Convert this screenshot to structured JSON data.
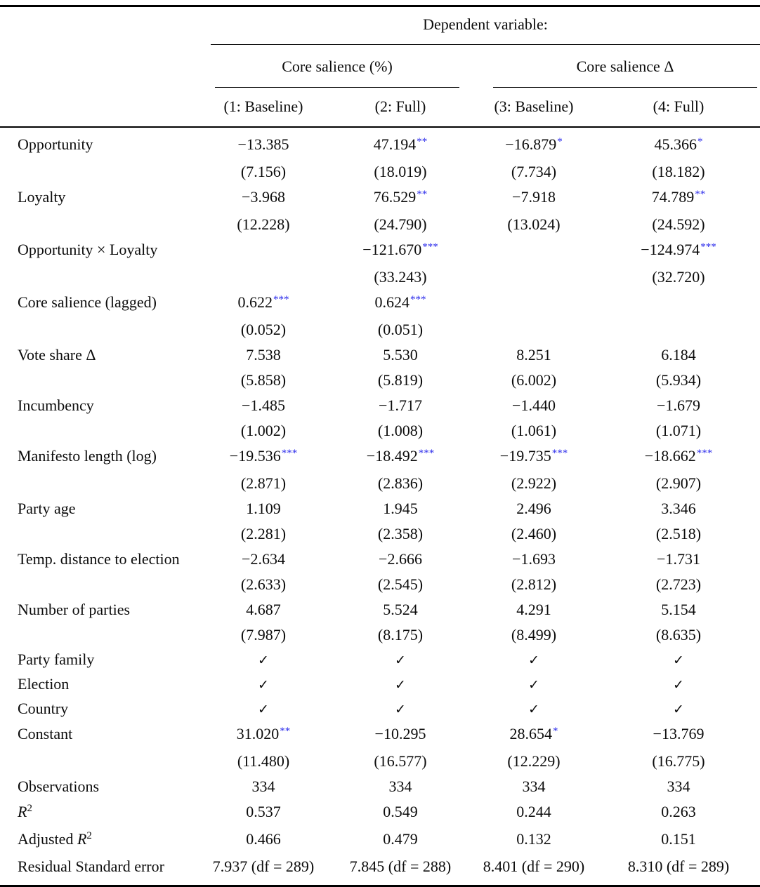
{
  "colors": {
    "significance_star": "#2b2beb",
    "text": "#0c0c0c"
  },
  "header": {
    "dependent_variable": "Dependent variable:",
    "groups": [
      {
        "label": "Core salience (%)"
      },
      {
        "label": "Core salience Δ"
      }
    ],
    "model_columns": [
      "(1: Baseline)",
      "(2: Full)",
      "(3: Baseline)",
      "(4: Full)"
    ]
  },
  "body": {
    "checkmark_glyph": "✓",
    "rows": [
      {
        "type": "coef",
        "label": "Opportunity",
        "coefs": [
          {
            "v": "−13.385",
            "s": ""
          },
          {
            "v": "47.194",
            "s": "**"
          },
          {
            "v": "−16.879",
            "s": "*"
          },
          {
            "v": "45.366",
            "s": "*"
          }
        ],
        "ses": [
          "(7.156)",
          "(18.019)",
          "(7.734)",
          "(18.182)"
        ]
      },
      {
        "type": "coef",
        "label": "Loyalty",
        "coefs": [
          {
            "v": "−3.968",
            "s": ""
          },
          {
            "v": "76.529",
            "s": "**"
          },
          {
            "v": "−7.918",
            "s": ""
          },
          {
            "v": "74.789",
            "s": "**"
          }
        ],
        "ses": [
          "(12.228)",
          "(24.790)",
          "(13.024)",
          "(24.592)"
        ]
      },
      {
        "type": "coef",
        "label": "Opportunity × Loyalty",
        "coefs": [
          null,
          {
            "v": "−121.670",
            "s": "***"
          },
          null,
          {
            "v": "−124.974",
            "s": "***"
          }
        ],
        "ses": [
          "",
          "(33.243)",
          "",
          "(32.720)"
        ]
      },
      {
        "type": "coef",
        "label": "Core salience (lagged)",
        "coefs": [
          {
            "v": "0.622",
            "s": "***"
          },
          {
            "v": "0.624",
            "s": "***"
          },
          null,
          null
        ],
        "ses": [
          "(0.052)",
          "(0.051)",
          "",
          ""
        ]
      },
      {
        "type": "coef",
        "label": "Vote share Δ",
        "coefs": [
          {
            "v": "7.538",
            "s": ""
          },
          {
            "v": "5.530",
            "s": ""
          },
          {
            "v": "8.251",
            "s": ""
          },
          {
            "v": "6.184",
            "s": ""
          }
        ],
        "ses": [
          "(5.858)",
          "(5.819)",
          "(6.002)",
          "(5.934)"
        ]
      },
      {
        "type": "coef",
        "label": "Incumbency",
        "coefs": [
          {
            "v": "−1.485",
            "s": ""
          },
          {
            "v": "−1.717",
            "s": ""
          },
          {
            "v": "−1.440",
            "s": ""
          },
          {
            "v": "−1.679",
            "s": ""
          }
        ],
        "ses": [
          "(1.002)",
          "(1.008)",
          "(1.061)",
          "(1.071)"
        ]
      },
      {
        "type": "coef",
        "label": "Manifesto length (log)",
        "coefs": [
          {
            "v": "−19.536",
            "s": "***"
          },
          {
            "v": "−18.492",
            "s": "***"
          },
          {
            "v": "−19.735",
            "s": "***"
          },
          {
            "v": "−18.662",
            "s": "***"
          }
        ],
        "ses": [
          "(2.871)",
          "(2.836)",
          "(2.922)",
          "(2.907)"
        ]
      },
      {
        "type": "coef",
        "label": "Party age",
        "coefs": [
          {
            "v": "1.109",
            "s": ""
          },
          {
            "v": "1.945",
            "s": ""
          },
          {
            "v": "2.496",
            "s": ""
          },
          {
            "v": "3.346",
            "s": ""
          }
        ],
        "ses": [
          "(2.281)",
          "(2.358)",
          "(2.460)",
          "(2.518)"
        ]
      },
      {
        "type": "coef",
        "label": "Temp. distance to election",
        "coefs": [
          {
            "v": "−2.634",
            "s": ""
          },
          {
            "v": "−2.666",
            "s": ""
          },
          {
            "v": "−1.693",
            "s": ""
          },
          {
            "v": "−1.731",
            "s": ""
          }
        ],
        "ses": [
          "(2.633)",
          "(2.545)",
          "(2.812)",
          "(2.723)"
        ]
      },
      {
        "type": "coef",
        "label": "Number of parties",
        "coefs": [
          {
            "v": "4.687",
            "s": ""
          },
          {
            "v": "5.524",
            "s": ""
          },
          {
            "v": "4.291",
            "s": ""
          },
          {
            "v": "5.154",
            "s": ""
          }
        ],
        "ses": [
          "(7.987)",
          "(8.175)",
          "(8.499)",
          "(8.635)"
        ]
      },
      {
        "type": "check",
        "label": "Party family",
        "checks": [
          "✓",
          "✓",
          "✓",
          "✓"
        ]
      },
      {
        "type": "check",
        "label": "Election",
        "checks": [
          "✓",
          "✓",
          "✓",
          "✓"
        ]
      },
      {
        "type": "check",
        "label": "Country",
        "checks": [
          "✓",
          "✓",
          "✓",
          "✓"
        ]
      },
      {
        "type": "coef",
        "label": "Constant",
        "coefs": [
          {
            "v": "31.020",
            "s": "**"
          },
          {
            "v": "−10.295",
            "s": ""
          },
          {
            "v": "28.654",
            "s": "*"
          },
          {
            "v": "−13.769",
            "s": ""
          }
        ],
        "ses": [
          "(11.480)",
          "(16.577)",
          "(12.229)",
          "(16.775)"
        ]
      },
      {
        "type": "stat",
        "label": "Observations",
        "values": [
          "334",
          "334",
          "334",
          "334"
        ]
      },
      {
        "type": "stat",
        "label_parts": [
          {
            "t": "R",
            "i": true
          },
          {
            "t": "2",
            "sup": true
          }
        ],
        "values": [
          "0.537",
          "0.549",
          "0.244",
          "0.263"
        ]
      },
      {
        "type": "stat",
        "label_parts": [
          {
            "t": "Adjusted "
          },
          {
            "t": "R",
            "i": true
          },
          {
            "t": "2",
            "sup": true
          }
        ],
        "values": [
          "0.466",
          "0.479",
          "0.132",
          "0.151"
        ]
      },
      {
        "type": "stat",
        "label": "Residual Standard error",
        "values": [
          "7.937 (df = 289)",
          "7.845 (df = 288)",
          "8.401 (df = 290)",
          "8.310 (df = 289)"
        ]
      }
    ]
  }
}
